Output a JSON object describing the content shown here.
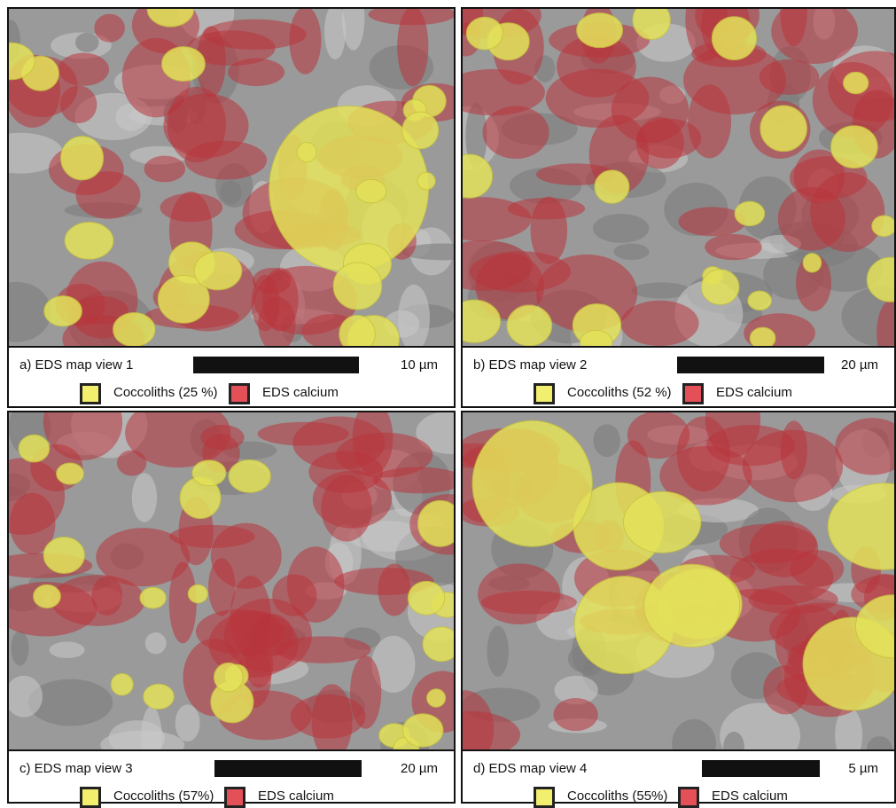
{
  "panels": [
    {
      "caption": "a) EDS map view 1",
      "scale": "10 µm",
      "legend": [
        "Coccoliths (25 %)",
        "EDS calcium"
      ]
    },
    {
      "caption": "b) EDS map view 2",
      "scale": "20 µm",
      "legend": [
        "Coccoliths (52 %)",
        "EDS calcium"
      ]
    },
    {
      "caption": "c) EDS map view 3",
      "scale": "20 µm",
      "legend": [
        "Coccoliths (57%)",
        "EDS calcium"
      ]
    },
    {
      "caption": "d) EDS map view 4",
      "scale": "5 µm",
      "legend": [
        "Coccoliths (55%)",
        "EDS calcium"
      ]
    }
  ]
}
